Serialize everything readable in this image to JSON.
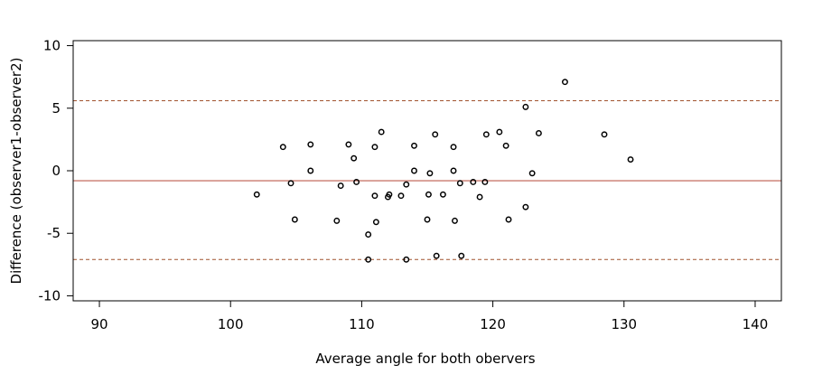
{
  "chart_data": {
    "type": "scatter",
    "title": "",
    "xlabel": "Average angle for both obervers",
    "ylabel": "Difference (observer1-observer2)",
    "xlim": [
      88,
      142
    ],
    "ylim": [
      -10.4,
      10.4
    ],
    "x_ticks": [
      90,
      100,
      110,
      120,
      130,
      140
    ],
    "y_ticks": [
      -10,
      -5,
      0,
      5,
      10
    ],
    "grid": false,
    "reference_lines": [
      {
        "name": "mean",
        "y": -0.8,
        "style": "solid",
        "color": "#c97a6e"
      },
      {
        "name": "upper-limit",
        "y": 5.6,
        "style": "dashed",
        "color": "#a0522d"
      },
      {
        "name": "lower-limit",
        "y": -7.1,
        "style": "dashed",
        "color": "#a0522d"
      }
    ],
    "points": [
      {
        "x": 102.0,
        "y": -1.9
      },
      {
        "x": 104.0,
        "y": 1.9
      },
      {
        "x": 104.6,
        "y": -1.0
      },
      {
        "x": 104.9,
        "y": -3.9
      },
      {
        "x": 106.1,
        "y": 2.1
      },
      {
        "x": 106.1,
        "y": 0.0
      },
      {
        "x": 108.1,
        "y": -4.0
      },
      {
        "x": 108.4,
        "y": -1.2
      },
      {
        "x": 109.0,
        "y": 2.1
      },
      {
        "x": 109.4,
        "y": 1.0
      },
      {
        "x": 109.6,
        "y": -0.9
      },
      {
        "x": 110.5,
        "y": -5.1
      },
      {
        "x": 110.5,
        "y": -7.1
      },
      {
        "x": 111.0,
        "y": 1.9
      },
      {
        "x": 111.0,
        "y": -2.0
      },
      {
        "x": 111.1,
        "y": -4.1
      },
      {
        "x": 111.5,
        "y": 3.1
      },
      {
        "x": 112.0,
        "y": -2.1
      },
      {
        "x": 112.1,
        "y": -1.9
      },
      {
        "x": 113.0,
        "y": -2.0
      },
      {
        "x": 113.4,
        "y": -1.1
      },
      {
        "x": 113.4,
        "y": -7.1
      },
      {
        "x": 114.0,
        "y": 2.0
      },
      {
        "x": 114.0,
        "y": 0.0
      },
      {
        "x": 115.0,
        "y": -3.9
      },
      {
        "x": 115.1,
        "y": -1.9
      },
      {
        "x": 115.2,
        "y": -0.2
      },
      {
        "x": 115.6,
        "y": 2.9
      },
      {
        "x": 115.7,
        "y": -6.8
      },
      {
        "x": 116.2,
        "y": -1.9
      },
      {
        "x": 117.0,
        "y": 1.9
      },
      {
        "x": 117.0,
        "y": 0.0
      },
      {
        "x": 117.1,
        "y": -4.0
      },
      {
        "x": 117.5,
        "y": -1.0
      },
      {
        "x": 117.6,
        "y": -6.8
      },
      {
        "x": 118.5,
        "y": -0.9
      },
      {
        "x": 119.0,
        "y": -2.1
      },
      {
        "x": 119.4,
        "y": -0.9
      },
      {
        "x": 119.5,
        "y": 2.9
      },
      {
        "x": 120.5,
        "y": 3.1
      },
      {
        "x": 121.0,
        "y": 2.0
      },
      {
        "x": 121.2,
        "y": -3.9
      },
      {
        "x": 122.5,
        "y": 5.1
      },
      {
        "x": 122.5,
        "y": -2.9
      },
      {
        "x": 123.0,
        "y": -0.2
      },
      {
        "x": 123.5,
        "y": 3.0
      },
      {
        "x": 125.5,
        "y": 7.1
      },
      {
        "x": 128.5,
        "y": 2.9
      },
      {
        "x": 130.5,
        "y": 0.9
      }
    ]
  }
}
